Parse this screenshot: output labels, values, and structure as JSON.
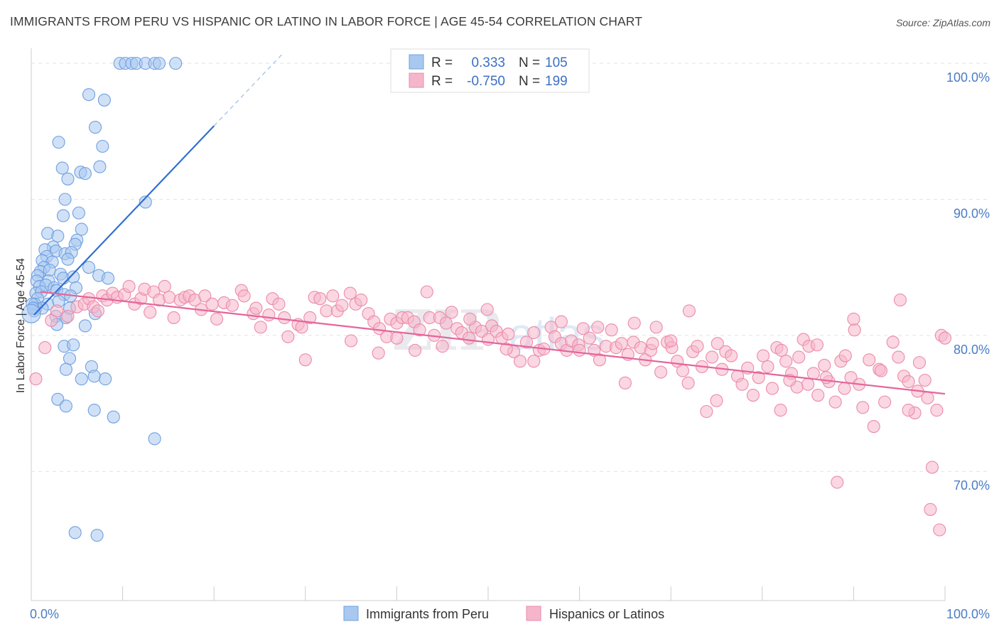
{
  "title": "IMMIGRANTS FROM PERU VS HISPANIC OR LATINO IN LABOR FORCE | AGE 45-54 CORRELATION CHART",
  "source": "Source: ZipAtlas.com",
  "watermark": {
    "part1": "ZIP",
    "part2": "atlas"
  },
  "chart_data": {
    "type": "scatter",
    "ylabel": "In Labor Force | Age 45-54",
    "xlabel": "",
    "xlim": [
      0,
      100
    ],
    "ylim": [
      60.5,
      101
    ],
    "x_tick_labels": [
      "0.0%",
      "100.0%"
    ],
    "y_ticks": [
      {
        "value": 70,
        "label": "70.0%"
      },
      {
        "value": 80,
        "label": "80.0%"
      },
      {
        "value": 90,
        "label": "90.0%"
      },
      {
        "value": 100,
        "label": "100.0%"
      }
    ],
    "grid": true,
    "legend": {
      "position": "top-center",
      "entries": [
        {
          "r_label": "R =",
          "r_value": "0.333",
          "n_label": "N =",
          "n_value": "105",
          "color": "#a9c8f0"
        },
        {
          "r_label": "R =",
          "r_value": "-0.750",
          "n_label": "N =",
          "n_value": "199",
          "color": "#f5b6cb"
        }
      ]
    },
    "series": [
      {
        "name": "Immigrants from Peru",
        "color": "#a9c8f0",
        "stroke": "#6fa0e0",
        "trend": {
          "x0": 0.3,
          "y0": 81.5,
          "x1": 20,
          "y1": 95.4,
          "dash_to_x": 27.5,
          "dash_to_y": 100.7,
          "color": "#2f6fd0"
        },
        "points": [
          [
            9.7,
            100
          ],
          [
            10.3,
            100
          ],
          [
            11,
            100
          ],
          [
            11.5,
            100
          ],
          [
            12.5,
            100
          ],
          [
            13.5,
            100
          ],
          [
            14,
            100
          ],
          [
            15.8,
            100
          ],
          [
            6.3,
            97.7
          ],
          [
            8,
            97.3
          ],
          [
            7,
            95.3
          ],
          [
            3,
            94.2
          ],
          [
            7.8,
            93.9
          ],
          [
            3.4,
            92.3
          ],
          [
            7.5,
            92.4
          ],
          [
            5.4,
            92
          ],
          [
            5.9,
            91.9
          ],
          [
            4,
            91.5
          ],
          [
            3.7,
            90
          ],
          [
            12.5,
            89.8
          ],
          [
            5.2,
            89
          ],
          [
            3.5,
            88.8
          ],
          [
            5.5,
            87.8
          ],
          [
            1.8,
            87.5
          ],
          [
            2.9,
            87.3
          ],
          [
            5,
            87
          ],
          [
            2.4,
            86.5
          ],
          [
            4.8,
            86.7
          ],
          [
            1.5,
            86.3
          ],
          [
            2.7,
            86.2
          ],
          [
            3.7,
            86
          ],
          [
            4.4,
            86.1
          ],
          [
            1.7,
            85.8
          ],
          [
            1.2,
            85.5
          ],
          [
            2.3,
            85.4
          ],
          [
            4,
            85.6
          ],
          [
            6.3,
            85
          ],
          [
            1.4,
            85
          ],
          [
            1,
            84.7
          ],
          [
            2,
            84.8
          ],
          [
            3.2,
            84.5
          ],
          [
            0.7,
            84.4
          ],
          [
            0.6,
            84
          ],
          [
            1.9,
            84
          ],
          [
            3.5,
            84.2
          ],
          [
            4.6,
            84.3
          ],
          [
            7.4,
            84.4
          ],
          [
            8.4,
            84.2
          ],
          [
            0.9,
            83.6
          ],
          [
            1.6,
            83.7
          ],
          [
            2.5,
            83.5
          ],
          [
            4.9,
            83.5
          ],
          [
            0.5,
            83.1
          ],
          [
            1.1,
            83.2
          ],
          [
            2.8,
            83.3
          ],
          [
            3.6,
            83
          ],
          [
            4.3,
            82.9
          ],
          [
            0.7,
            82.7
          ],
          [
            0.4,
            82.3
          ],
          [
            1.8,
            82.3
          ],
          [
            3,
            82.5
          ],
          [
            0.5,
            82
          ],
          [
            1.2,
            82
          ],
          [
            0.3,
            81.8
          ],
          [
            2.7,
            81.4
          ],
          [
            3.8,
            81.3
          ],
          [
            7,
            81.6
          ],
          [
            4.2,
            82
          ],
          [
            2.8,
            80.8
          ],
          [
            5.9,
            80.7
          ],
          [
            3.6,
            79.2
          ],
          [
            4.6,
            79.3
          ],
          [
            4.2,
            78.3
          ],
          [
            3.8,
            77.5
          ],
          [
            6.6,
            77.7
          ],
          [
            6.9,
            77
          ],
          [
            8.1,
            76.8
          ],
          [
            5.5,
            76.8
          ],
          [
            2.9,
            75.3
          ],
          [
            3.8,
            74.8
          ],
          [
            6.9,
            74.5
          ],
          [
            9,
            74
          ],
          [
            13.5,
            72.4
          ],
          [
            4.8,
            65.5
          ],
          [
            7.2,
            65.3
          ],
          [
            0.1,
            82.3
          ],
          [
            0.2,
            82
          ]
        ]
      },
      {
        "name": "Hispanics or Latinos",
        "color": "#f5b6cb",
        "stroke": "#ec8ba9",
        "trend": {
          "x0": 1,
          "y0": 83.2,
          "x1": 100,
          "y1": 75.7,
          "color": "#e5659a"
        },
        "points": [
          [
            0.5,
            76.8
          ],
          [
            1.5,
            79.1
          ],
          [
            2.2,
            81.1
          ],
          [
            2.8,
            81.8
          ],
          [
            4,
            81.4
          ],
          [
            5,
            82.1
          ],
          [
            5.8,
            82.3
          ],
          [
            6.3,
            82.7
          ],
          [
            6.8,
            82.1
          ],
          [
            7.3,
            81.8
          ],
          [
            7.8,
            82.9
          ],
          [
            8.3,
            82.6
          ],
          [
            8.9,
            83.1
          ],
          [
            9.4,
            82.8
          ],
          [
            10.2,
            83
          ],
          [
            10.7,
            83.6
          ],
          [
            11.3,
            82.3
          ],
          [
            12,
            82.7
          ],
          [
            12.4,
            83.4
          ],
          [
            13,
            81.7
          ],
          [
            13.4,
            83.2
          ],
          [
            14,
            82.6
          ],
          [
            14.6,
            83.6
          ],
          [
            15.1,
            82.8
          ],
          [
            15.6,
            81.3
          ],
          [
            16.3,
            82.6
          ],
          [
            16.8,
            82.8
          ],
          [
            17.3,
            82.9
          ],
          [
            17.9,
            82.6
          ],
          [
            18.6,
            81.9
          ],
          [
            19,
            82.9
          ],
          [
            19.8,
            82.3
          ],
          [
            20.3,
            81.2
          ],
          [
            21.1,
            82.4
          ],
          [
            22,
            82.2
          ],
          [
            23,
            83.3
          ],
          [
            23.3,
            82.9
          ],
          [
            24.3,
            81.6
          ],
          [
            24.6,
            82
          ],
          [
            25.1,
            80.6
          ],
          [
            26,
            81.5
          ],
          [
            26.4,
            82.7
          ],
          [
            27.1,
            82.3
          ],
          [
            27.7,
            81.3
          ],
          [
            28.1,
            79.9
          ],
          [
            29.2,
            80.8
          ],
          [
            29.6,
            80.6
          ],
          [
            30.5,
            81.3
          ],
          [
            31,
            82.8
          ],
          [
            31.6,
            82.7
          ],
          [
            32.3,
            81.8
          ],
          [
            33,
            82.9
          ],
          [
            33.5,
            81.8
          ],
          [
            34,
            82.2
          ],
          [
            34.9,
            83.1
          ],
          [
            35.5,
            82.3
          ],
          [
            36.1,
            82.6
          ],
          [
            36.9,
            81.6
          ],
          [
            37.5,
            81
          ],
          [
            38.1,
            80.5
          ],
          [
            38.9,
            79.9
          ],
          [
            39.3,
            81.2
          ],
          [
            40,
            80.9
          ],
          [
            40.6,
            81.3
          ],
          [
            41.2,
            81.3
          ],
          [
            41.9,
            81
          ],
          [
            42.5,
            80.4
          ],
          [
            43.3,
            83.2
          ],
          [
            43.6,
            81.3
          ],
          [
            44.1,
            80
          ],
          [
            44.7,
            81.3
          ],
          [
            45.4,
            80.9
          ],
          [
            46,
            81.7
          ],
          [
            46.6,
            80.5
          ],
          [
            47.1,
            80.2
          ],
          [
            47.9,
            79.8
          ],
          [
            48.6,
            80.6
          ],
          [
            49.3,
            80.3
          ],
          [
            49.9,
            81.9
          ],
          [
            50.4,
            80.7
          ],
          [
            50.9,
            80.3
          ],
          [
            51.5,
            79.8
          ],
          [
            52.2,
            80.1
          ],
          [
            52.8,
            78.8
          ],
          [
            53.5,
            78.1
          ],
          [
            54.2,
            79.5
          ],
          [
            55,
            80.2
          ],
          [
            55.6,
            78.9
          ],
          [
            56.1,
            79
          ],
          [
            56.9,
            80.6
          ],
          [
            57.3,
            79.9
          ],
          [
            58,
            79.4
          ],
          [
            58.6,
            78.9
          ],
          [
            59.1,
            79.6
          ],
          [
            59.9,
            79.3
          ],
          [
            60.4,
            80.5
          ],
          [
            61.1,
            79.8
          ],
          [
            61.6,
            78.9
          ],
          [
            62.2,
            78.2
          ],
          [
            62.9,
            79.2
          ],
          [
            63.5,
            80.4
          ],
          [
            64,
            79.1
          ],
          [
            64.6,
            79.4
          ],
          [
            65.3,
            78.6
          ],
          [
            65.9,
            79.5
          ],
          [
            66.7,
            79.1
          ],
          [
            67.2,
            78.2
          ],
          [
            67.8,
            78.9
          ],
          [
            68.4,
            80.6
          ],
          [
            68.9,
            77.3
          ],
          [
            69.6,
            79.5
          ],
          [
            70.1,
            79.1
          ],
          [
            70.7,
            78.1
          ],
          [
            71.3,
            77.4
          ],
          [
            71.9,
            76.5
          ],
          [
            72.4,
            78.8
          ],
          [
            72.9,
            79.2
          ],
          [
            73.4,
            77.7
          ],
          [
            73.9,
            74.4
          ],
          [
            74.5,
            78.4
          ],
          [
            75.1,
            79.4
          ],
          [
            75.6,
            77.5
          ],
          [
            76,
            78.8
          ],
          [
            76.6,
            78.5
          ],
          [
            77.3,
            77
          ],
          [
            77.8,
            76.4
          ],
          [
            78.4,
            77.6
          ],
          [
            79,
            75.6
          ],
          [
            79.6,
            76.9
          ],
          [
            80.1,
            78.5
          ],
          [
            80.6,
            77.7
          ],
          [
            81.1,
            76.1
          ],
          [
            81.6,
            79.1
          ],
          [
            82.1,
            78.9
          ],
          [
            82.6,
            78.1
          ],
          [
            83.2,
            77.2
          ],
          [
            83.8,
            76.2
          ],
          [
            84.5,
            79.7
          ],
          [
            85.1,
            79.2
          ],
          [
            85.6,
            77.2
          ],
          [
            86.1,
            75.6
          ],
          [
            86.8,
            77.8
          ],
          [
            87.3,
            76.6
          ],
          [
            88,
            75.1
          ],
          [
            88.6,
            78.1
          ],
          [
            89.1,
            78.5
          ],
          [
            89.7,
            76.9
          ],
          [
            90.1,
            80.4
          ],
          [
            90.6,
            76.4
          ],
          [
            91,
            74.7
          ],
          [
            91.7,
            78.2
          ],
          [
            92.2,
            73.3
          ],
          [
            92.8,
            77.5
          ],
          [
            93.4,
            75.1
          ],
          [
            94.3,
            79.5
          ],
          [
            94.9,
            78.4
          ],
          [
            95.5,
            77
          ],
          [
            96,
            76.6
          ],
          [
            96.7,
            74.3
          ],
          [
            97.2,
            78
          ],
          [
            97.8,
            76.7
          ],
          [
            98.1,
            75.4
          ],
          [
            98.6,
            70.3
          ],
          [
            99.1,
            74.5
          ],
          [
            99.6,
            80
          ],
          [
            100,
            79.8
          ],
          [
            88.2,
            69.2
          ],
          [
            98.4,
            67.2
          ],
          [
            99.4,
            65.7
          ],
          [
            95.1,
            82.6
          ],
          [
            60,
            78.9
          ],
          [
            62,
            80.6
          ],
          [
            65,
            76.5
          ],
          [
            70,
            79.6
          ],
          [
            72,
            81.8
          ],
          [
            68,
            79.4
          ],
          [
            66,
            80.9
          ],
          [
            58,
            81
          ],
          [
            50,
            79.7
          ],
          [
            45,
            79.2
          ],
          [
            40,
            79.8
          ],
          [
            35,
            79.6
          ],
          [
            55,
            78.1
          ],
          [
            52,
            79
          ],
          [
            48,
            81.2
          ],
          [
            42,
            78.9
          ],
          [
            38,
            78.7
          ],
          [
            30,
            78.2
          ],
          [
            75,
            75.2
          ],
          [
            82,
            74.5
          ],
          [
            84,
            78.4
          ],
          [
            86,
            79.3
          ],
          [
            90,
            81.2
          ],
          [
            93,
            77.4
          ],
          [
            96,
            74.5
          ],
          [
            97,
            75.9
          ],
          [
            89,
            76.1
          ],
          [
            87,
            76.9
          ],
          [
            85,
            76.4
          ],
          [
            83,
            76.7
          ]
        ]
      }
    ]
  }
}
